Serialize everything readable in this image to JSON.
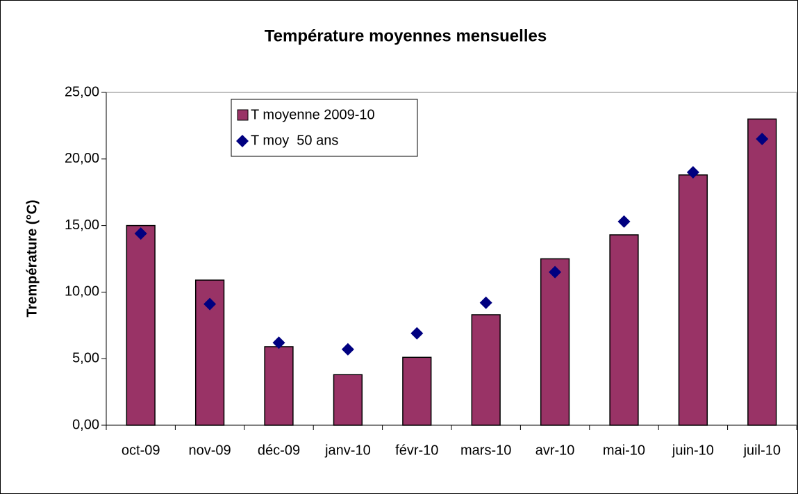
{
  "chart_data": {
    "type": "bar",
    "title": "Température moyennes mensuelles",
    "y_label": "Trempérature (°C)",
    "categories": [
      "oct-09",
      "nov-09",
      "déc-09",
      "janv-10",
      "févr-10",
      "mars-10",
      "avr-10",
      "mai-10",
      "juin-10",
      "juil-10"
    ],
    "series": [
      {
        "name": "T moyenne 2009-10",
        "type": "bar",
        "color": "#993366",
        "values": [
          15.0,
          10.9,
          5.9,
          3.8,
          5.1,
          8.3,
          12.5,
          14.3,
          18.8,
          23.0
        ]
      },
      {
        "name": "T moy  50 ans",
        "type": "scatter",
        "color": "#000080",
        "values": [
          14.4,
          9.1,
          6.2,
          5.7,
          6.9,
          9.2,
          11.5,
          15.3,
          19.0,
          21.5
        ]
      }
    ],
    "ylim": [
      0,
      25
    ],
    "yticks": [
      {
        "value": 0,
        "label": "0,00"
      },
      {
        "value": 5,
        "label": "5,00"
      },
      {
        "value": 10,
        "label": "10,00"
      },
      {
        "value": 15,
        "label": "15,00"
      },
      {
        "value": 20,
        "label": "20,00"
      },
      {
        "value": 25,
        "label": "25,00"
      }
    ],
    "legend": "upper left"
  }
}
